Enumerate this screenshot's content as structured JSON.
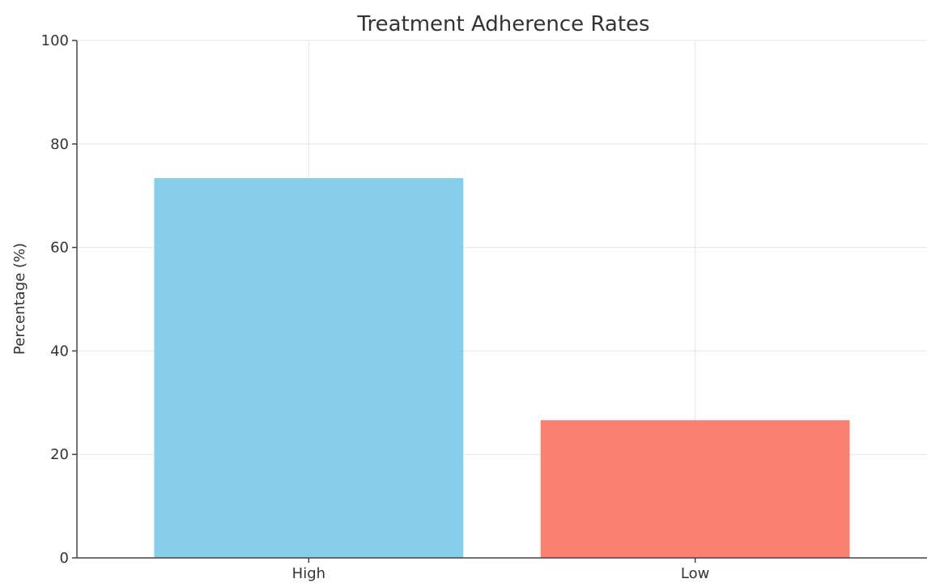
{
  "chart_data": {
    "type": "bar",
    "title": "Treatment Adherence Rates",
    "xlabel": "",
    "ylabel": "Percentage (%)",
    "categories": [
      "High",
      "Low"
    ],
    "values": [
      73.4,
      26.6
    ],
    "colors": [
      "#87CEEB",
      "#FA8072"
    ],
    "ylim": [
      0,
      100
    ],
    "yticks": [
      0,
      20,
      40,
      60,
      80,
      100
    ],
    "grid": true
  }
}
